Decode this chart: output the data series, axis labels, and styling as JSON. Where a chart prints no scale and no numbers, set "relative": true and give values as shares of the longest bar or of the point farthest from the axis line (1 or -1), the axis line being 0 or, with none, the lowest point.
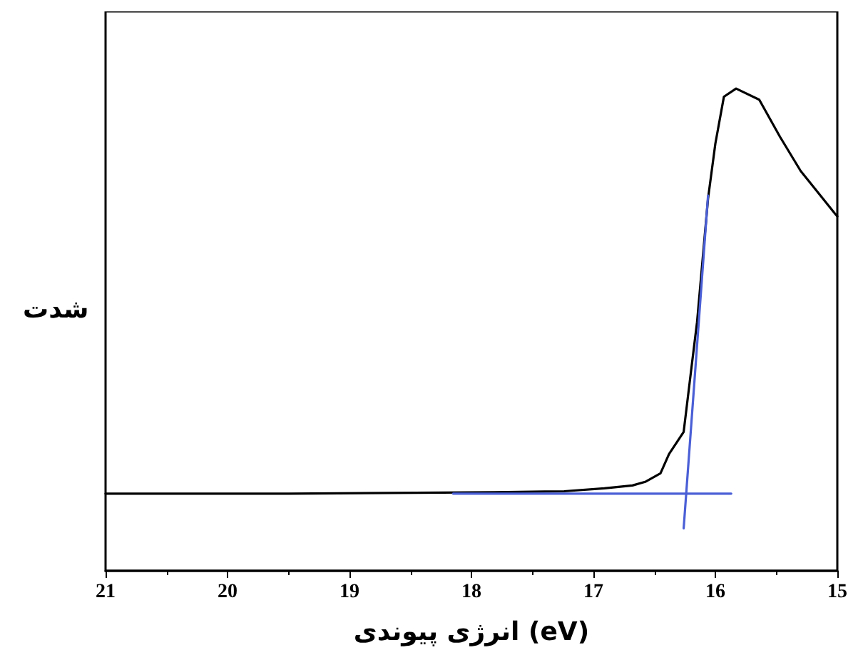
{
  "chart_data": {
    "type": "line",
    "xlabel": "انرژی پیوندی (eV)",
    "ylabel": "شدت",
    "relative": true,
    "xlim": [
      21,
      15
    ],
    "xticks": [
      21,
      20,
      19,
      18,
      17,
      16,
      15
    ],
    "grid": false,
    "marker": "none",
    "line_style": "solid",
    "series": [
      {
        "color": "#000000",
        "x": [
          21,
          19.5,
          17.81,
          17.24,
          16.91,
          16.68,
          16.57,
          16.45,
          16.38,
          16.26,
          16.2,
          16.15,
          16.06,
          16.0,
          15.93,
          15.83,
          15.64,
          15.47,
          15.3,
          15.02,
          15.0
        ],
        "values": [
          0.16,
          0.16,
          0.163,
          0.165,
          0.171,
          0.177,
          0.185,
          0.202,
          0.242,
          0.288,
          0.413,
          0.516,
          0.772,
          0.886,
          0.983,
          1.0,
          0.977,
          0.9,
          0.829,
          0.741,
          0.735
        ]
      },
      {
        "color": "#4a5fd6",
        "x": [
          18.15,
          15.87
        ],
        "values": [
          0.16,
          0.16
        ]
      },
      {
        "color": "#4a5fd6",
        "x": [
          16.26,
          16.06
        ],
        "values": [
          0.088,
          0.778
        ]
      }
    ]
  }
}
